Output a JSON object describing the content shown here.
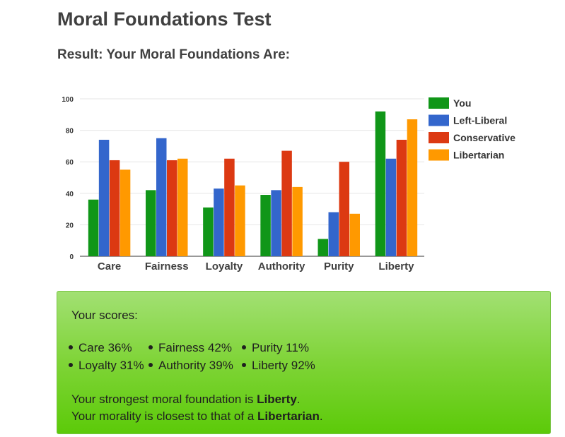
{
  "page": {
    "title": "Moral Foundations Test",
    "result_heading": "Result: Your Moral Foundations Are:"
  },
  "chart_data": {
    "type": "bar",
    "categories": [
      "Care",
      "Fairness",
      "Loyalty",
      "Authority",
      "Purity",
      "Liberty"
    ],
    "series": [
      {
        "name": "You",
        "color": "#109618",
        "values": [
          36,
          42,
          31,
          39,
          11,
          92
        ]
      },
      {
        "name": "Left-Liberal",
        "color": "#3366cc",
        "values": [
          74,
          75,
          43,
          42,
          28,
          62
        ]
      },
      {
        "name": "Conservative",
        "color": "#dc3912",
        "values": [
          61,
          61,
          62,
          67,
          60,
          74
        ]
      },
      {
        "name": "Libertarian",
        "color": "#ff9900",
        "values": [
          55,
          62,
          45,
          44,
          27,
          87
        ]
      }
    ],
    "ylim": [
      0,
      100
    ],
    "yticks": [
      0,
      20,
      40,
      60,
      80,
      100
    ],
    "legend_position": "right",
    "grid": true
  },
  "results": {
    "scores_label": "Your scores:",
    "scores": [
      {
        "text": "Care 36%"
      },
      {
        "text": "Fairness 42%"
      },
      {
        "text": "Purity 11%"
      },
      {
        "text": "Loyalty 31%"
      },
      {
        "text": "Authority 39%"
      },
      {
        "text": "Liberty 92%"
      }
    ],
    "strongest_prefix": "Your strongest moral foundation is ",
    "strongest_value": "Liberty",
    "strongest_suffix": ".",
    "closest_prefix": "Your morality is closest to that of a ",
    "closest_value": "Libertarian",
    "closest_suffix": "."
  }
}
